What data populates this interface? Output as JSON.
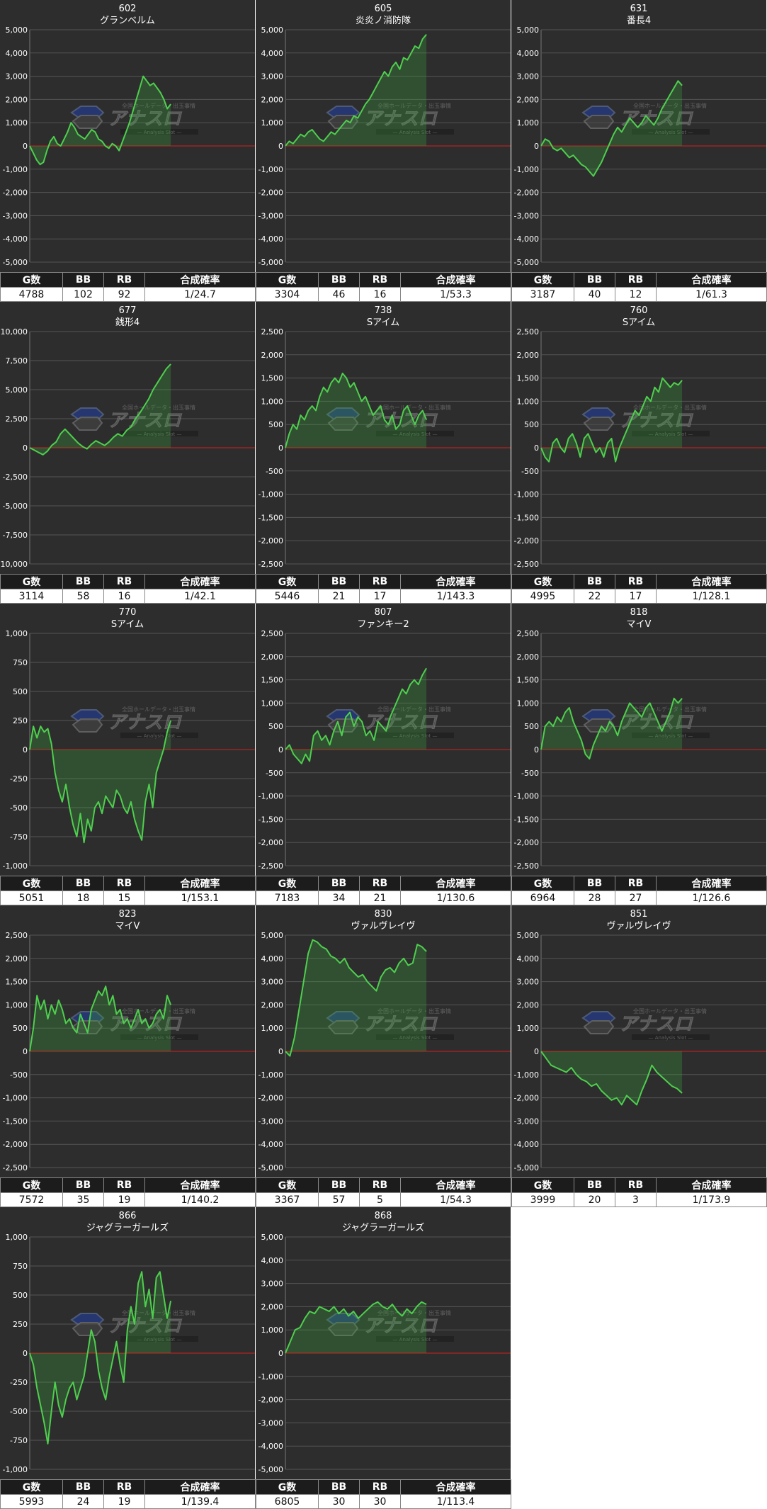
{
  "table_headers": [
    "G数",
    "BB",
    "RB",
    "合成確率"
  ],
  "watermark": {
    "logo_text": "アナスロ",
    "tagline": "全国ホールデータ・出玉事情",
    "sub": "Analysis Slot"
  },
  "colors": {
    "background": "#2d2d2d",
    "line": "#4ecf4e",
    "fill": "rgba(60,170,60,0.28)",
    "zero_line": "#d21e1e",
    "grid": "#555555",
    "text": "#ffffff"
  },
  "chart_data": [
    {
      "type": "area",
      "number": "602",
      "name": "グランベルム",
      "ylim": [
        -5000,
        5000
      ],
      "yticks": [
        "5,000",
        "4,000",
        "3,000",
        "2,000",
        "1,000",
        "0",
        "-1,000",
        "-2,000",
        "-3,000",
        "-4,000",
        "-5,000"
      ],
      "values": [
        0,
        -300,
        -600,
        -800,
        -700,
        -200,
        200,
        400,
        100,
        0,
        300,
        600,
        1000,
        800,
        500,
        400,
        300,
        500,
        700,
        600,
        300,
        200,
        0,
        -100,
        100,
        0,
        -200,
        200,
        600,
        1000,
        1500,
        2000,
        2500,
        3000,
        2800,
        2600,
        2700,
        2500,
        2300,
        2000,
        1600,
        1800
      ],
      "stats": {
        "games": "4788",
        "bb": "102",
        "rb": "92",
        "prob": "1/24.7"
      }
    },
    {
      "type": "area",
      "number": "605",
      "name": "炎炎ノ消防隊",
      "ylim": [
        -5000,
        5000
      ],
      "yticks": [
        "5,000",
        "4,000",
        "3,000",
        "2,000",
        "1,000",
        "0",
        "-1,000",
        "-2,000",
        "-3,000",
        "-4,000",
        "-5,000"
      ],
      "values": [
        0,
        200,
        100,
        300,
        500,
        400,
        600,
        700,
        500,
        300,
        200,
        400,
        600,
        500,
        700,
        900,
        1100,
        1000,
        1300,
        1200,
        1500,
        1800,
        2000,
        2300,
        2600,
        2900,
        3200,
        3000,
        3400,
        3600,
        3300,
        3800,
        3700,
        4000,
        4300,
        4200,
        4600,
        4800
      ],
      "stats": {
        "games": "3304",
        "bb": "46",
        "rb": "16",
        "prob": "1/53.3"
      }
    },
    {
      "type": "area",
      "number": "631",
      "name": "番長4",
      "ylim": [
        -5000,
        5000
      ],
      "yticks": [
        "5,000",
        "4,000",
        "3,000",
        "2,000",
        "1,000",
        "0",
        "-1,000",
        "-2,000",
        "-3,000",
        "-4,000",
        "-5,000"
      ],
      "values": [
        0,
        300,
        200,
        -100,
        -200,
        -100,
        -300,
        -500,
        -400,
        -600,
        -800,
        -900,
        -1100,
        -1300,
        -1000,
        -700,
        -300,
        100,
        500,
        800,
        600,
        900,
        1200,
        1000,
        800,
        1000,
        1300,
        1100,
        900,
        1200,
        1600,
        1900,
        2200,
        2500,
        2800,
        2600
      ],
      "stats": {
        "games": "3187",
        "bb": "40",
        "rb": "12",
        "prob": "1/61.3"
      }
    },
    {
      "type": "area",
      "number": "677",
      "name": "銭形4",
      "ylim": [
        -10000,
        10000
      ],
      "yticks": [
        "10,000",
        "7,500",
        "5,000",
        "2,500",
        "0",
        "-2,500",
        "-5,000",
        "-7,500",
        "-10,000"
      ],
      "values": [
        0,
        -200,
        -400,
        -600,
        -300,
        200,
        500,
        1200,
        1600,
        1200,
        800,
        400,
        100,
        -100,
        300,
        600,
        400,
        200,
        500,
        900,
        1200,
        1000,
        1500,
        1800,
        2500,
        3000,
        3600,
        4200,
        5000,
        5600,
        6200,
        6800,
        7200
      ],
      "stats": {
        "games": "3114",
        "bb": "58",
        "rb": "16",
        "prob": "1/42.1"
      }
    },
    {
      "type": "area",
      "number": "738",
      "name": "Sアイム",
      "ylim": [
        -2500,
        2500
      ],
      "yticks": [
        "2,500",
        "2,000",
        "1,500",
        "1,000",
        "500",
        "0",
        "-500",
        "-1,000",
        "-1,500",
        "-2,000",
        "-2,500"
      ],
      "values": [
        0,
        300,
        500,
        400,
        700,
        600,
        800,
        900,
        800,
        1100,
        1300,
        1200,
        1400,
        1500,
        1400,
        1600,
        1500,
        1300,
        1400,
        1200,
        1000,
        1100,
        900,
        700,
        800,
        900,
        600,
        500,
        700,
        400,
        500,
        800,
        900,
        700,
        500,
        700,
        800,
        600
      ],
      "stats": {
        "games": "5446",
        "bb": "21",
        "rb": "17",
        "prob": "1/143.3"
      }
    },
    {
      "type": "area",
      "number": "760",
      "name": "Sアイム",
      "ylim": [
        -2500,
        2500
      ],
      "yticks": [
        "2,500",
        "2,000",
        "1,500",
        "1,000",
        "500",
        "0",
        "-500",
        "-1,000",
        "-1,500",
        "-2,000",
        "-2,500"
      ],
      "values": [
        0,
        -200,
        -300,
        100,
        200,
        0,
        -100,
        200,
        300,
        100,
        -200,
        200,
        300,
        100,
        -100,
        0,
        -200,
        100,
        200,
        -300,
        0,
        200,
        400,
        600,
        800,
        700,
        900,
        1100,
        1000,
        1300,
        1200,
        1500,
        1400,
        1300,
        1400,
        1350,
        1450
      ],
      "stats": {
        "games": "4995",
        "bb": "22",
        "rb": "17",
        "prob": "1/128.1"
      }
    },
    {
      "type": "area",
      "number": "770",
      "name": "Sアイム",
      "ylim": [
        -1000,
        1000
      ],
      "yticks": [
        "1,000",
        "750",
        "500",
        "250",
        "0",
        "-250",
        "-500",
        "-750",
        "-1,000"
      ],
      "values": [
        0,
        200,
        100,
        200,
        150,
        180,
        50,
        -200,
        -350,
        -450,
        -300,
        -500,
        -650,
        -750,
        -550,
        -800,
        -600,
        -700,
        -500,
        -450,
        -550,
        -400,
        -450,
        -500,
        -350,
        -400,
        -500,
        -550,
        -450,
        -600,
        -700,
        -780,
        -450,
        -300,
        -500,
        -200,
        -100,
        0,
        150,
        250
      ],
      "stats": {
        "games": "5051",
        "bb": "18",
        "rb": "15",
        "prob": "1/153.1"
      }
    },
    {
      "type": "area",
      "number": "807",
      "name": "ファンキー2",
      "ylim": [
        -2500,
        2500
      ],
      "yticks": [
        "2,500",
        "2,000",
        "1,500",
        "1,000",
        "500",
        "0",
        "-500",
        "-1,000",
        "-1,500",
        "-2,000",
        "-2,500"
      ],
      "values": [
        0,
        100,
        -100,
        -200,
        -300,
        -100,
        -250,
        300,
        400,
        200,
        300,
        100,
        400,
        600,
        300,
        700,
        800,
        500,
        700,
        600,
        300,
        400,
        200,
        600,
        500,
        400,
        700,
        900,
        1100,
        1300,
        1200,
        1400,
        1500,
        1400,
        1600,
        1750
      ],
      "stats": {
        "games": "7183",
        "bb": "34",
        "rb": "21",
        "prob": "1/130.6"
      }
    },
    {
      "type": "area",
      "number": "818",
      "name": "マイV",
      "ylim": [
        -2500,
        2500
      ],
      "yticks": [
        "2,500",
        "2,000",
        "1,500",
        "1,000",
        "500",
        "0",
        "-500",
        "-1,000",
        "-1,500",
        "-2,000",
        "-2,500"
      ],
      "values": [
        0,
        500,
        600,
        500,
        700,
        600,
        800,
        900,
        600,
        400,
        200,
        -100,
        -200,
        100,
        300,
        500,
        400,
        600,
        500,
        300,
        600,
        800,
        1000,
        900,
        800,
        700,
        900,
        1000,
        800,
        600,
        400,
        600,
        800,
        1100,
        1000,
        1100
      ],
      "stats": {
        "games": "6964",
        "bb": "28",
        "rb": "27",
        "prob": "1/126.6"
      }
    },
    {
      "type": "area",
      "number": "823",
      "name": "マイV",
      "ylim": [
        -2500,
        2500
      ],
      "yticks": [
        "2,500",
        "2,000",
        "1,500",
        "1,000",
        "500",
        "0",
        "-500",
        "-1,000",
        "-1,500",
        "-2,000",
        "-2,500"
      ],
      "values": [
        0,
        500,
        1200,
        900,
        1100,
        700,
        1000,
        800,
        1100,
        900,
        600,
        700,
        500,
        400,
        800,
        600,
        400,
        900,
        1100,
        1300,
        1200,
        1400,
        1000,
        1200,
        800,
        900,
        600,
        700,
        500,
        700,
        900,
        600,
        700,
        500,
        600,
        800,
        900,
        700,
        1200,
        1000
      ],
      "stats": {
        "games": "7572",
        "bb": "35",
        "rb": "19",
        "prob": "1/140.2"
      }
    },
    {
      "type": "area",
      "number": "830",
      "name": "ヴァルヴレイヴ",
      "ylim": [
        -5000,
        5000
      ],
      "yticks": [
        "5,000",
        "4,000",
        "3,000",
        "2,000",
        "1,000",
        "0",
        "-1,000",
        "-2,000",
        "-3,000",
        "-4,000",
        "-5,000"
      ],
      "values": [
        0,
        -200,
        600,
        1800,
        3000,
        4200,
        4800,
        4700,
        4500,
        4400,
        4100,
        4000,
        3800,
        4000,
        3600,
        3400,
        3200,
        3300,
        3000,
        2800,
        2600,
        3200,
        3500,
        3600,
        3400,
        3800,
        4000,
        3700,
        3800,
        4600,
        4500,
        4300
      ],
      "stats": {
        "games": "3367",
        "bb": "57",
        "rb": "5",
        "prob": "1/54.3"
      }
    },
    {
      "type": "area",
      "number": "851",
      "name": "ヴァルヴレイヴ",
      "ylim": [
        -5000,
        5000
      ],
      "yticks": [
        "5,000",
        "4,000",
        "3,000",
        "2,000",
        "1,000",
        "0",
        "-1,000",
        "-2,000",
        "-3,000",
        "-4,000",
        "-5,000"
      ],
      "values": [
        0,
        -300,
        -600,
        -700,
        -800,
        -900,
        -700,
        -1000,
        -1200,
        -1300,
        -1500,
        -1400,
        -1700,
        -1900,
        -2100,
        -2000,
        -2300,
        -1900,
        -2100,
        -2300,
        -1700,
        -1200,
        -600,
        -900,
        -1100,
        -1300,
        -1500,
        -1600,
        -1800
      ],
      "stats": {
        "games": "3999",
        "bb": "20",
        "rb": "3",
        "prob": "1/173.9"
      }
    },
    {
      "type": "area",
      "number": "866",
      "name": "ジャグラーガールズ",
      "ylim": [
        -1000,
        1000
      ],
      "yticks": [
        "1,000",
        "750",
        "500",
        "250",
        "0",
        "-250",
        "-500",
        "-750",
        "-1,000"
      ],
      "values": [
        0,
        -100,
        -300,
        -450,
        -600,
        -780,
        -500,
        -250,
        -450,
        -550,
        -400,
        -300,
        -250,
        -400,
        -300,
        -200,
        0,
        200,
        100,
        -150,
        -300,
        -400,
        -200,
        -50,
        100,
        -100,
        -250,
        200,
        400,
        250,
        600,
        700,
        400,
        550,
        300,
        650,
        700,
        500,
        300,
        450
      ],
      "stats": {
        "games": "5993",
        "bb": "24",
        "rb": "19",
        "prob": "1/139.4"
      }
    },
    {
      "type": "area",
      "number": "868",
      "name": "ジャグラーガールズ",
      "ylim": [
        -5000,
        5000
      ],
      "yticks": [
        "5,000",
        "4,000",
        "3,000",
        "2,000",
        "1,000",
        "0",
        "-1,000",
        "-2,000",
        "-3,000",
        "-4,000",
        "-5,000"
      ],
      "values": [
        0,
        500,
        1000,
        1100,
        1500,
        1800,
        1700,
        2000,
        1900,
        1800,
        2000,
        1700,
        1900,
        1600,
        1800,
        1500,
        1700,
        1900,
        2100,
        2200,
        2000,
        1900,
        2100,
        1800,
        1600,
        1900,
        1700,
        2000,
        2200,
        2100
      ],
      "stats": {
        "games": "6805",
        "bb": "30",
        "rb": "30",
        "prob": "1/113.4"
      }
    }
  ]
}
